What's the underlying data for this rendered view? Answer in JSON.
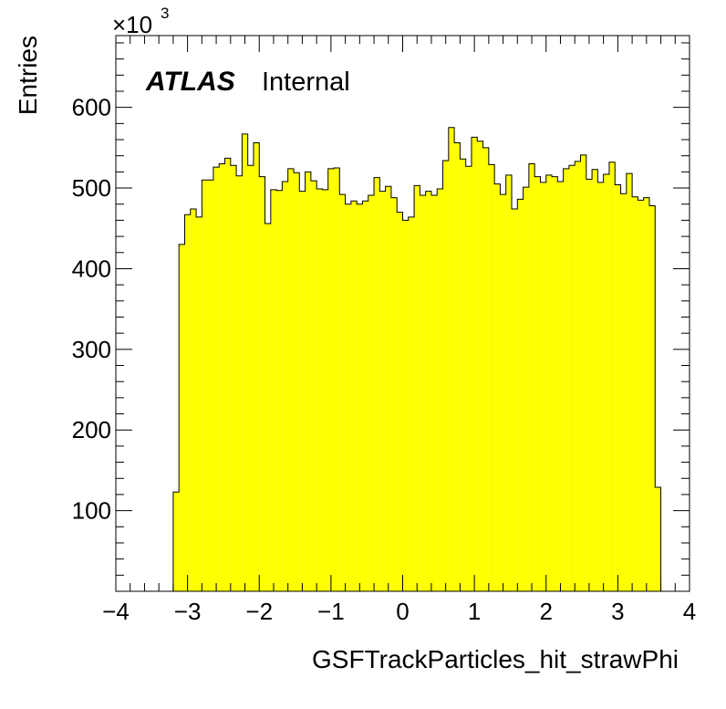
{
  "chart_data": {
    "type": "bar",
    "title": "",
    "xlabel": "GSFTrackParticles_hit_strawPhi",
    "ylabel": "Entries",
    "y_multiplier_label": "×10",
    "y_multiplier_exponent": "3",
    "xlim": [
      -4,
      4
    ],
    "ylim": [
      0,
      689
    ],
    "x_major_ticks": [
      -4,
      -3,
      -2,
      -1,
      0,
      1,
      2,
      3,
      4
    ],
    "x_tick_labels": [
      "−4",
      "−3",
      "−2",
      "−1",
      "0",
      "1",
      "2",
      "3",
      "4"
    ],
    "y_major_ticks": [
      100,
      200,
      300,
      400,
      500,
      600
    ],
    "y_tick_labels": [
      "100",
      "200",
      "300",
      "400",
      "500",
      "600"
    ],
    "grid": false,
    "fill_color": "#ffff00",
    "line_color": "#000000",
    "bins": {
      "start": -3.2,
      "width": 0.08
    },
    "values": [
      123,
      430,
      467,
      474,
      464,
      510,
      510,
      526,
      530,
      537,
      528,
      515,
      567,
      528,
      556,
      514,
      456,
      498,
      497,
      508,
      524,
      519,
      496,
      520,
      509,
      499,
      498,
      524,
      525,
      492,
      480,
      484,
      480,
      484,
      491,
      513,
      496,
      502,
      488,
      470,
      460,
      464,
      503,
      491,
      496,
      491,
      499,
      534,
      575,
      556,
      536,
      527,
      563,
      558,
      550,
      529,
      505,
      492,
      516,
      474,
      486,
      501,
      530,
      514,
      507,
      516,
      514,
      508,
      524,
      528,
      533,
      541,
      511,
      523,
      507,
      517,
      532,
      504,
      493,
      518,
      489,
      485,
      488,
      478,
      129
    ],
    "annotations": {
      "atlas": "ATLAS",
      "status": "Internal"
    }
  }
}
